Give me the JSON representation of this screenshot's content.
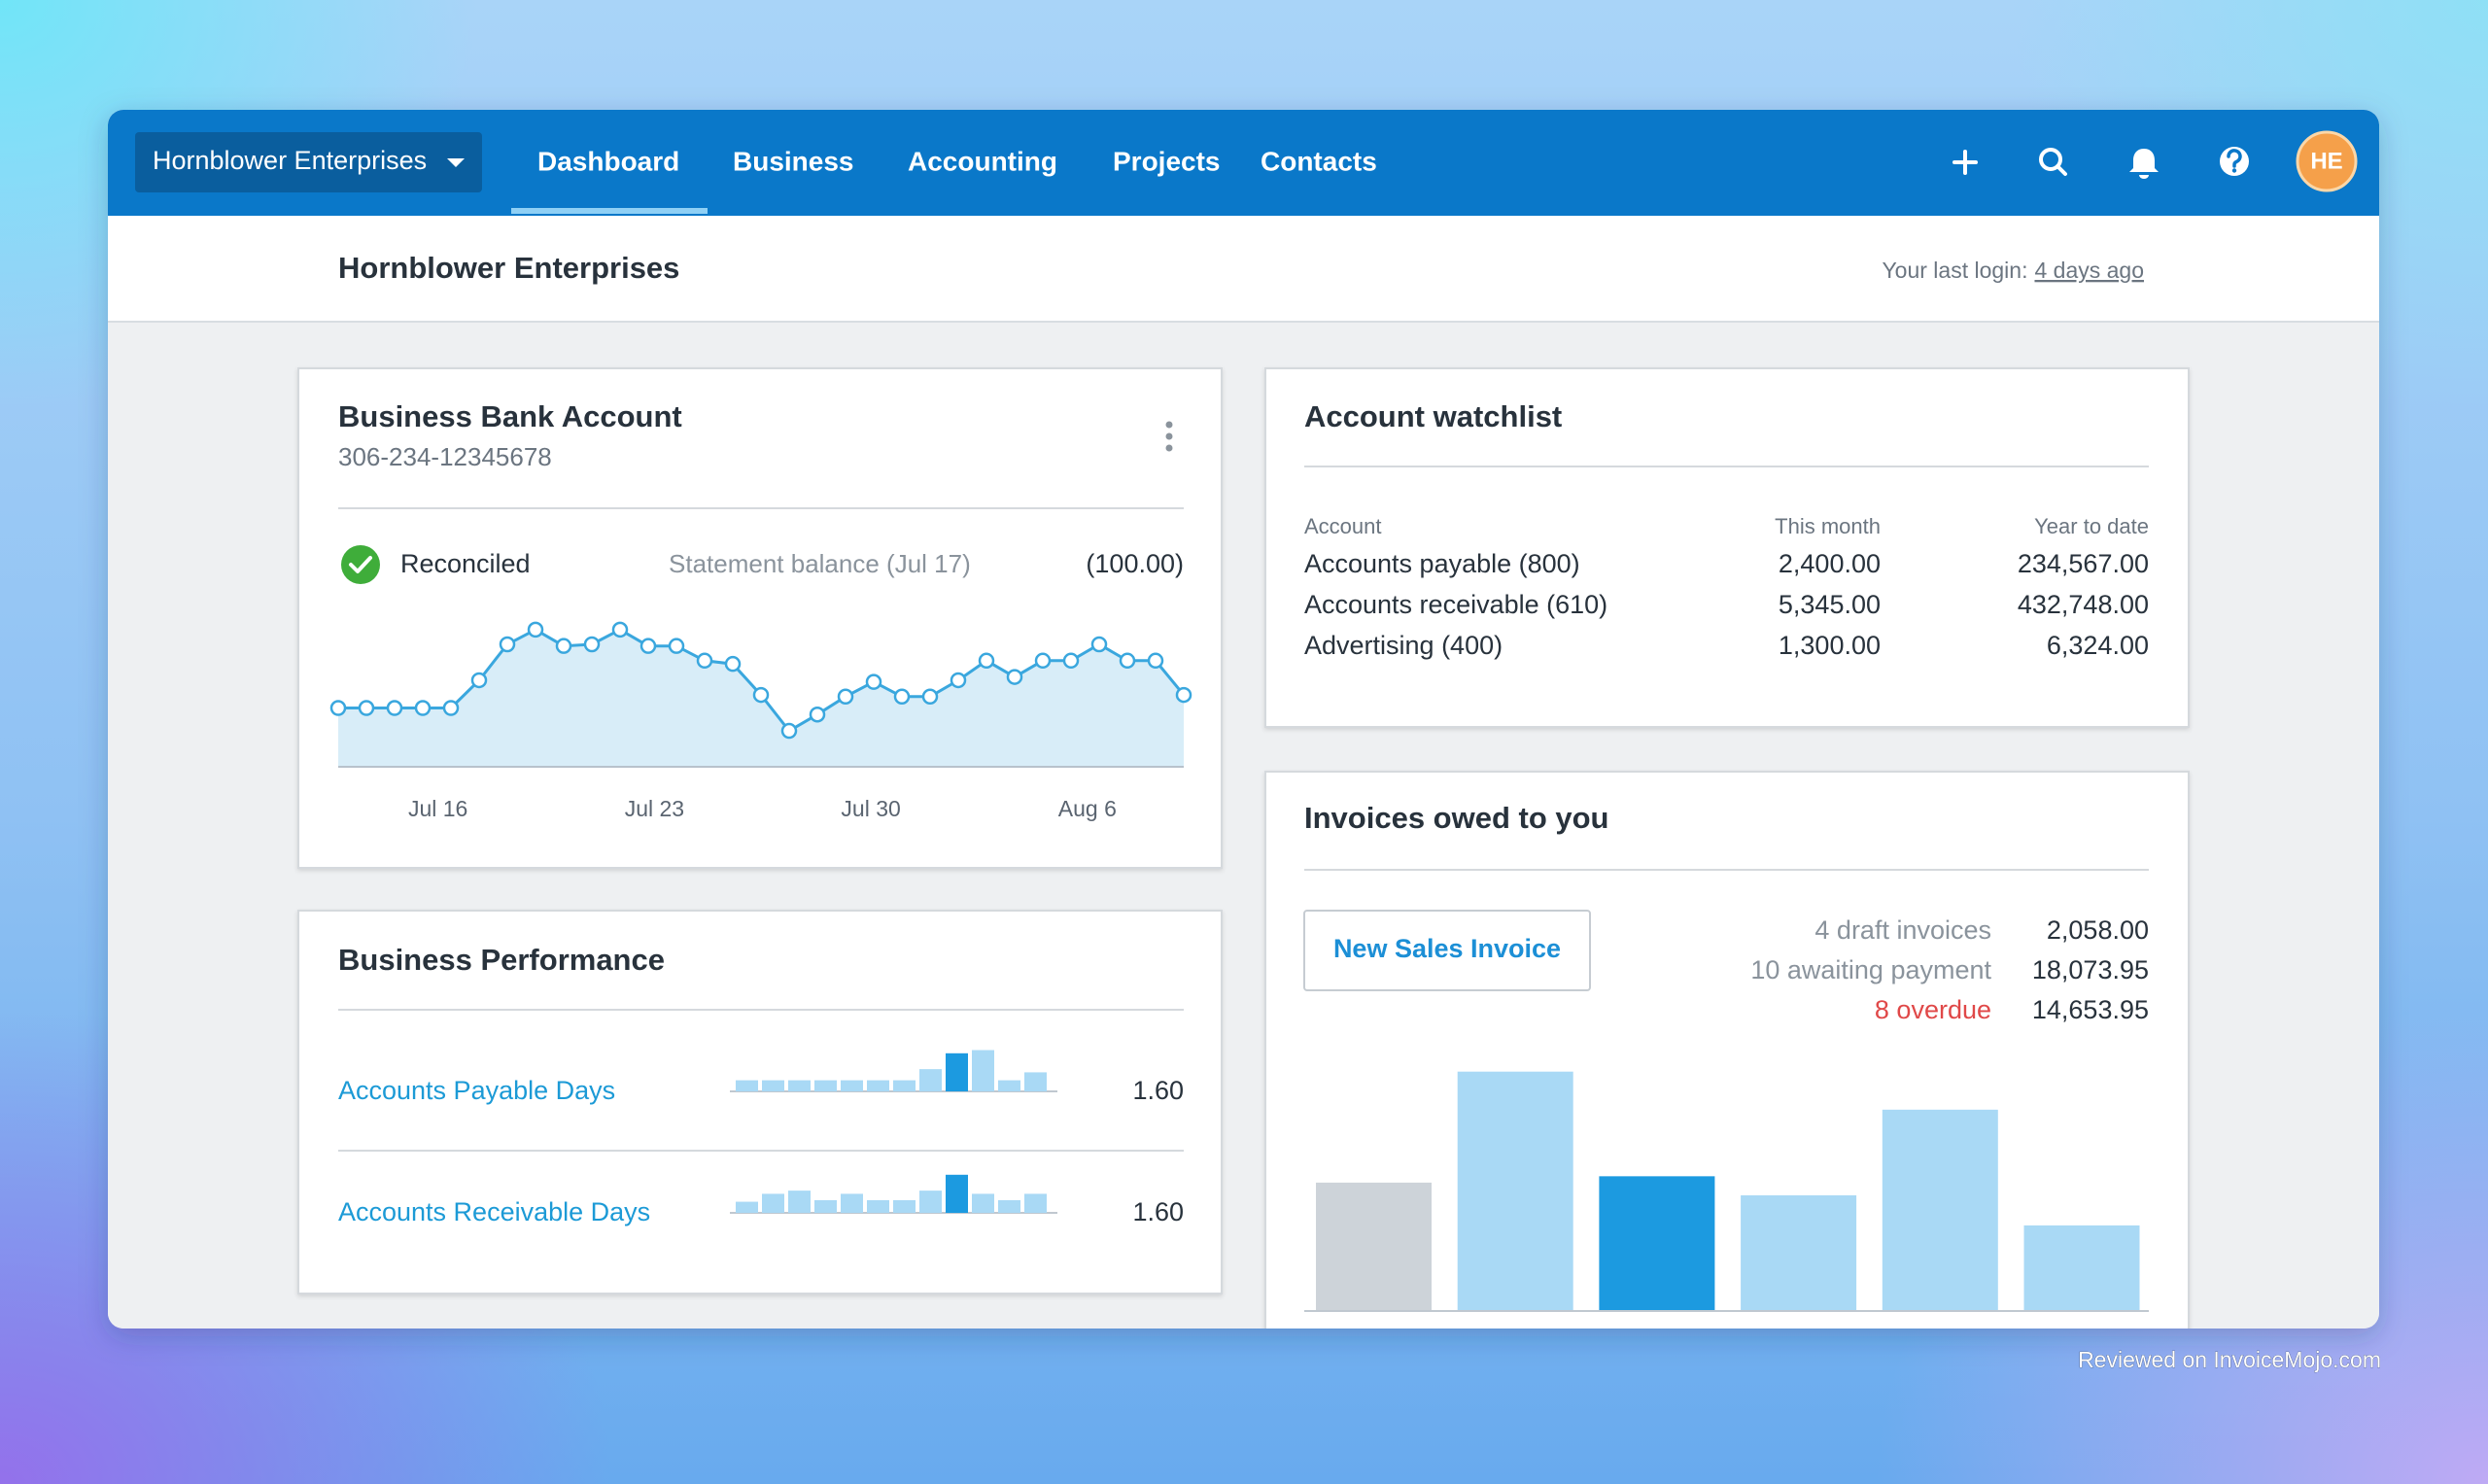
{
  "nav": {
    "org": "Hornblower Enterprises",
    "items": [
      "Dashboard",
      "Business",
      "Accounting",
      "Projects",
      "Contacts"
    ],
    "avatar": "HE"
  },
  "header": {
    "title": "Hornblower Enterprises",
    "login_label": "Your last login:",
    "login_link": "4 days ago"
  },
  "bank_account": {
    "title": "Business Bank Account",
    "number": "306-234-12345678",
    "status": "Reconciled",
    "statement_label": "Statement balance (Jul 17)",
    "statement_balance": "(100.00)",
    "chart": {
      "type": "line",
      "xticks": [
        "Jul 16",
        "Jul 23",
        "Jul 30",
        "Aug 6"
      ],
      "values": [
        36,
        36,
        36,
        36,
        36,
        53,
        75,
        84,
        74,
        75,
        84,
        74,
        74,
        65,
        63,
        44,
        22,
        32,
        43,
        52,
        43,
        43,
        53,
        65,
        55,
        65,
        65,
        75,
        65,
        65,
        44
      ],
      "ylim": [
        0,
        100
      ],
      "color": "#3aa7de"
    }
  },
  "performance": {
    "title": "Business Performance",
    "rows": [
      {
        "label": "Accounts Payable Days",
        "value": "1.60",
        "chart": {
          "type": "bar",
          "values": [
            7,
            7,
            7,
            7,
            7,
            7,
            7,
            14,
            24,
            26,
            7,
            12
          ],
          "ylim": [
            0,
            30
          ],
          "colors": [
            "#a9d9f5",
            "#a9d9f5",
            "#a9d9f5",
            "#a9d9f5",
            "#a9d9f5",
            "#a9d9f5",
            "#a9d9f5",
            "#a9d9f5",
            "#1c9ae0",
            "#a9d9f5",
            "#a9d9f5",
            "#a9d9f5"
          ]
        }
      },
      {
        "label": "Accounts Receivable Days",
        "value": "1.60",
        "chart": {
          "type": "bar",
          "values": [
            7,
            12,
            14,
            8,
            12,
            8,
            8,
            14,
            24,
            12,
            8,
            12
          ],
          "ylim": [
            0,
            30
          ],
          "colors": [
            "#a9d9f5",
            "#a9d9f5",
            "#a9d9f5",
            "#a9d9f5",
            "#a9d9f5",
            "#a9d9f5",
            "#a9d9f5",
            "#a9d9f5",
            "#1c9ae0",
            "#a9d9f5",
            "#a9d9f5",
            "#a9d9f5"
          ]
        }
      }
    ]
  },
  "watchlist": {
    "title": "Account watchlist",
    "columns": [
      "Account",
      "This month",
      "Year to date"
    ],
    "rows": [
      [
        "Accounts payable (800)",
        "2,400.00",
        "234,567.00"
      ],
      [
        "Accounts receivable (610)",
        "5,345.00",
        "432,748.00"
      ],
      [
        "Advertising (400)",
        "1,300.00",
        "6,324.00"
      ]
    ]
  },
  "invoices": {
    "title": "Invoices owed to you",
    "button": "New Sales Invoice",
    "summary": [
      {
        "label": "4 draft invoices",
        "value": "2,058.00",
        "color": "#8a939c"
      },
      {
        "label": "10 awaiting payment",
        "value": "18,073.95",
        "color": "#8a939c"
      },
      {
        "label": "8 overdue",
        "value": "14,653.95",
        "color": "#e04848"
      }
    ],
    "chart": {
      "type": "bar",
      "values": [
        81,
        151,
        85,
        73,
        127,
        54
      ],
      "ylim": [
        0,
        160
      ],
      "colors": [
        "#cdd3d9",
        "#a9d9f5",
        "#1c9ae0",
        "#a9d9f5",
        "#a9d9f5",
        "#a9d9f5"
      ]
    }
  },
  "watermark": "Reviewed on InvoiceMojo.com"
}
